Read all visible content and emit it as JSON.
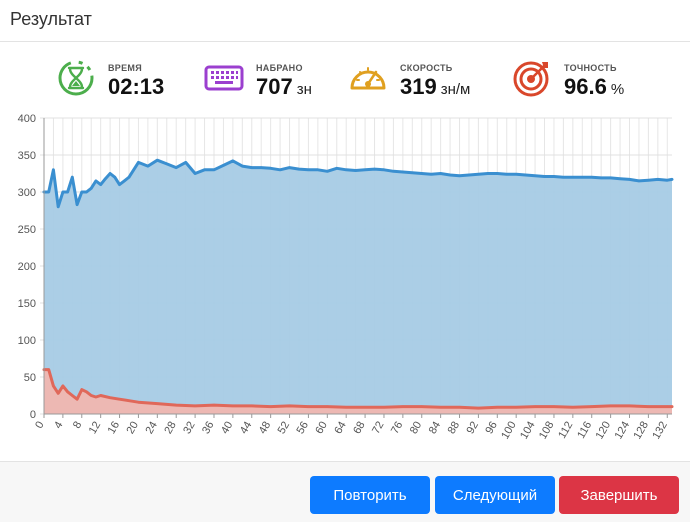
{
  "header": {
    "title": "Результат"
  },
  "stats": {
    "time": {
      "label": "ВРЕМЯ",
      "value": "02:13",
      "unit": "",
      "icon": "hourglass-icon",
      "color": "#4cae4c"
    },
    "typed": {
      "label": "НАБРАНО",
      "value": "707",
      "unit": "зн",
      "icon": "keyboard-icon",
      "color": "#9b3fcf"
    },
    "speed": {
      "label": "СКОРОСТЬ",
      "value": "319",
      "unit": "зн/м",
      "icon": "speedometer-icon",
      "color": "#e0a020"
    },
    "accuracy": {
      "label": "ТОЧНОСТЬ",
      "value": "96.6",
      "unit": "%",
      "icon": "target-icon",
      "color": "#d9472b"
    }
  },
  "buttons": {
    "repeat": "Повторить",
    "next": "Следующий",
    "finish": "Завершить"
  },
  "colors": {
    "speed_line": "#3a8fd0",
    "speed_fill": "#a6cbe5",
    "error_line": "#e0685a",
    "error_fill": "#f4b6ad",
    "primary": "#0d7bff",
    "danger": "#dc3545"
  },
  "chart_data": {
    "type": "area",
    "title": "",
    "xlabel": "",
    "ylabel": "",
    "xlim": [
      0,
      133
    ],
    "ylim": [
      0,
      400
    ],
    "y_ticks": [
      0,
      50,
      100,
      150,
      200,
      250,
      300,
      350,
      400
    ],
    "x_ticks": [
      0,
      4,
      8,
      12,
      16,
      20,
      24,
      28,
      32,
      36,
      40,
      44,
      48,
      52,
      56,
      60,
      64,
      68,
      72,
      76,
      80,
      84,
      88,
      92,
      96,
      100,
      104,
      108,
      112,
      116,
      120,
      124,
      128,
      132
    ],
    "grid": true,
    "series": [
      {
        "x": [
          0,
          1,
          2,
          3,
          4,
          5,
          6,
          7,
          8,
          9,
          10,
          11,
          12,
          13,
          14,
          15,
          16,
          17,
          18,
          19,
          20,
          22,
          24,
          26,
          28,
          30,
          32,
          34,
          36,
          38,
          40,
          42,
          44,
          46,
          48,
          50,
          52,
          54,
          56,
          58,
          60,
          62,
          64,
          66,
          68,
          70,
          72,
          74,
          76,
          78,
          80,
          82,
          84,
          86,
          88,
          90,
          92,
          94,
          96,
          98,
          100,
          102,
          104,
          106,
          108,
          110,
          112,
          114,
          116,
          118,
          120,
          122,
          124,
          126,
          128,
          130,
          132,
          133
        ],
        "values": [
          300,
          300,
          330,
          280,
          300,
          300,
          320,
          283,
          300,
          300,
          305,
          315,
          310,
          318,
          325,
          320,
          310,
          315,
          320,
          330,
          340,
          335,
          343,
          338,
          333,
          340,
          325,
          330,
          330,
          336,
          342,
          335,
          333,
          333,
          332,
          330,
          333,
          331,
          330,
          330,
          328,
          332,
          330,
          329,
          330,
          331,
          330,
          328,
          327,
          326,
          325,
          324,
          325,
          323,
          322,
          323,
          324,
          325,
          325,
          324,
          324,
          323,
          322,
          321,
          321,
          320,
          320,
          320,
          320,
          319,
          319,
          318,
          317,
          315,
          316,
          317,
          316,
          317
        ]
      },
      {
        "x": [
          0,
          1,
          2,
          3,
          4,
          5,
          6,
          7,
          8,
          9,
          10,
          11,
          12,
          14,
          16,
          18,
          20,
          24,
          28,
          32,
          36,
          40,
          44,
          48,
          52,
          56,
          60,
          64,
          68,
          72,
          76,
          80,
          84,
          88,
          92,
          96,
          100,
          104,
          108,
          112,
          116,
          120,
          124,
          128,
          132,
          133
        ],
        "values": [
          60,
          60,
          38,
          28,
          38,
          30,
          25,
          20,
          33,
          30,
          25,
          23,
          25,
          22,
          20,
          18,
          16,
          14,
          12,
          11,
          12,
          11,
          11,
          10,
          11,
          10,
          10,
          9,
          9,
          9,
          10,
          10,
          9,
          9,
          8,
          9,
          9,
          10,
          10,
          9,
          10,
          11,
          11,
          10,
          10,
          10
        ]
      }
    ]
  }
}
